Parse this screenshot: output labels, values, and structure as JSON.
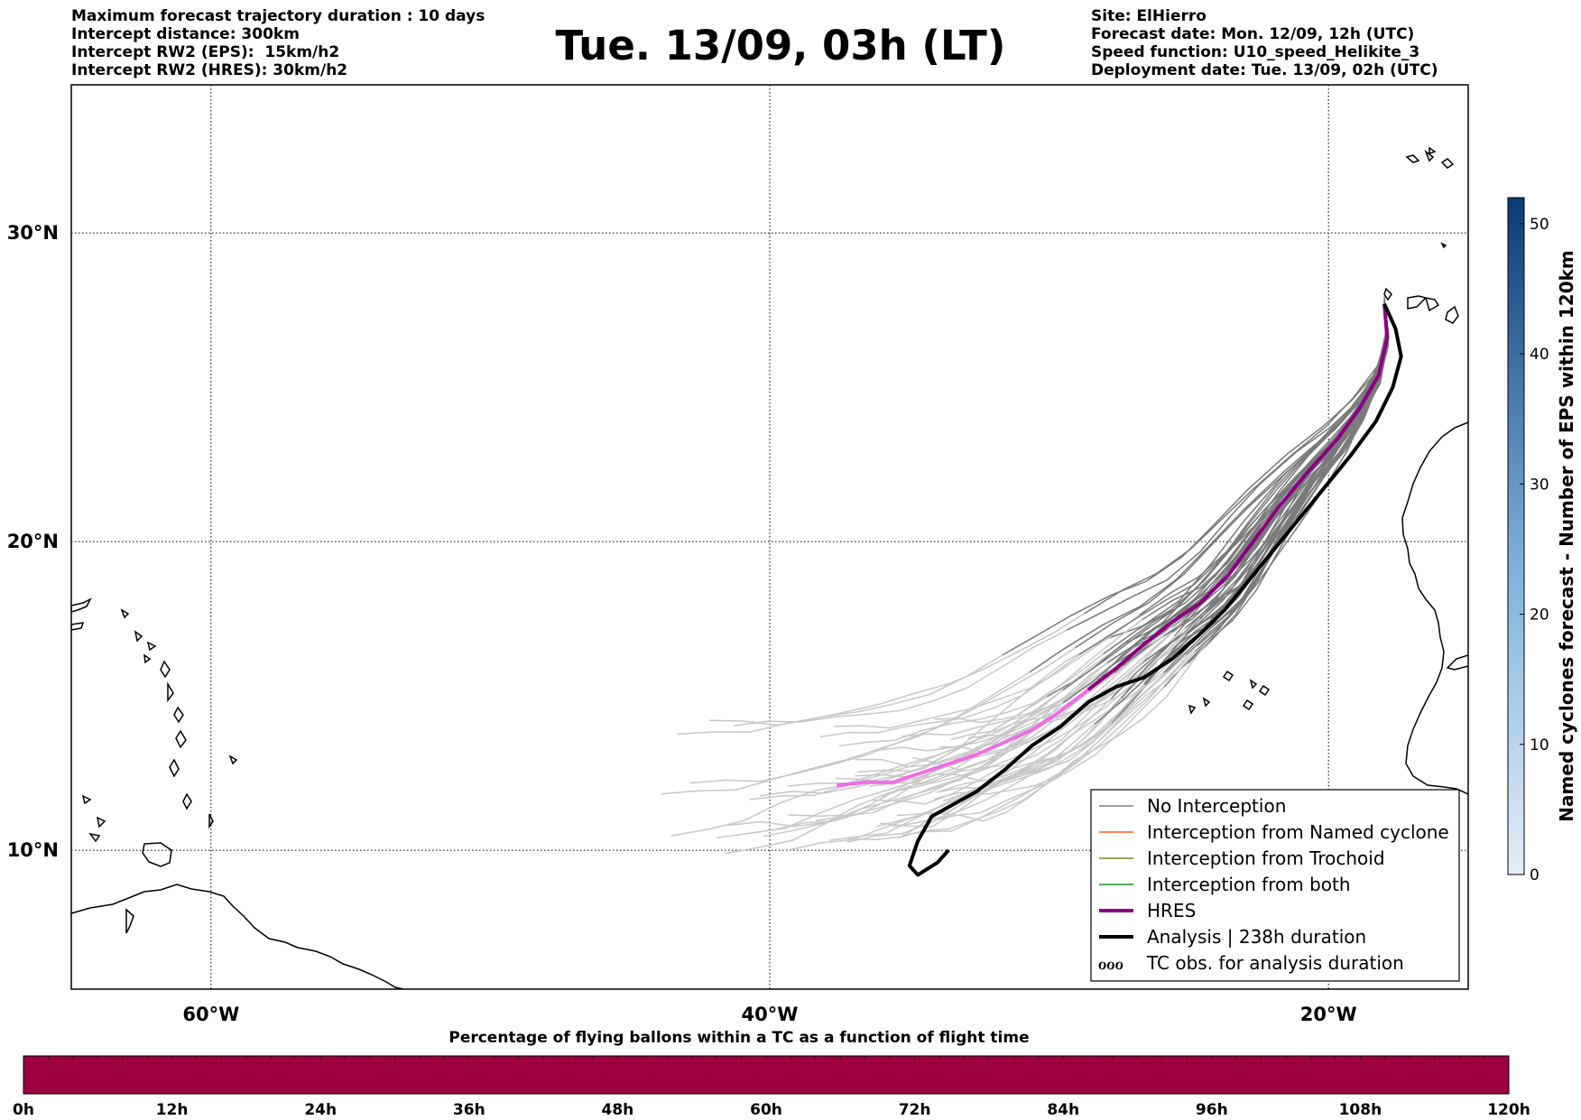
{
  "header": {
    "left_lines": [
      "Maximum forecast trajectory duration : 10 days",
      "Intercept distance: 300km",
      "Intercept RW2 (EPS):  15km/h2",
      "Intercept RW2 (HRES): 30km/h2"
    ],
    "right_lines": [
      "Site: ElHierro",
      "Forecast date: Mon. 12/09, 12h (UTC)",
      "Speed function: U10_speed_Helikite_3",
      "Deployment date: Tue. 13/09, 02h (UTC)"
    ],
    "title": "Tue. 13/09, 03h (LT)"
  },
  "map": {
    "lon_range": [
      -65,
      -15
    ],
    "lat_range": [
      5.5,
      34.8
    ],
    "lon_ticks": [
      {
        "lon": -60,
        "label": "60°W"
      },
      {
        "lon": -40,
        "label": "40°W"
      },
      {
        "lon": -20,
        "label": "20°W"
      }
    ],
    "lat_ticks": [
      {
        "lat": 30,
        "label": "30°N"
      },
      {
        "lat": 20,
        "label": "20°N"
      },
      {
        "lat": 10,
        "label": "10°N"
      }
    ],
    "grid": true,
    "site": {
      "lon": -18.0,
      "lat": 27.7
    },
    "hres_track": [
      [
        -18.0,
        27.7
      ],
      [
        -17.9,
        26.6
      ],
      [
        -18.2,
        25.4
      ],
      [
        -18.9,
        24.3
      ],
      [
        -19.7,
        23.3
      ],
      [
        -20.7,
        22.3
      ],
      [
        -21.8,
        21.1
      ],
      [
        -22.7,
        20.0
      ],
      [
        -23.6,
        18.9
      ],
      [
        -24.6,
        18.0
      ],
      [
        -25.6,
        17.4
      ],
      [
        -26.7,
        16.6
      ],
      [
        -27.6,
        15.9
      ],
      [
        -28.6,
        15.2
      ],
      [
        -29.6,
        14.5
      ],
      [
        -30.6,
        13.9
      ],
      [
        -31.6,
        13.5
      ],
      [
        -32.6,
        13.1
      ],
      [
        -33.6,
        12.8
      ],
      [
        -34.6,
        12.5
      ],
      [
        -35.6,
        12.2
      ],
      [
        -36.6,
        12.2
      ],
      [
        -37.6,
        12.1
      ]
    ],
    "hres_light_from_index": 13,
    "analysis_track": [
      [
        -18.0,
        27.7
      ],
      [
        -17.6,
        26.9
      ],
      [
        -17.4,
        26.0
      ],
      [
        -17.7,
        25.0
      ],
      [
        -18.3,
        23.9
      ],
      [
        -19.2,
        22.8
      ],
      [
        -20.1,
        21.8
      ],
      [
        -21.0,
        20.8
      ],
      [
        -21.9,
        19.8
      ],
      [
        -22.8,
        18.8
      ],
      [
        -23.7,
        17.8
      ],
      [
        -24.6,
        17.0
      ],
      [
        -25.6,
        16.2
      ],
      [
        -26.6,
        15.6
      ],
      [
        -27.6,
        15.3
      ],
      [
        -28.6,
        14.8
      ],
      [
        -29.6,
        14.0
      ],
      [
        -30.6,
        13.4
      ],
      [
        -31.6,
        12.6
      ],
      [
        -32.6,
        11.9
      ],
      [
        -33.6,
        11.4
      ],
      [
        -34.2,
        11.1
      ],
      [
        -34.7,
        10.3
      ],
      [
        -35.0,
        9.5
      ],
      [
        -34.7,
        9.2
      ],
      [
        -34.0,
        9.6
      ],
      [
        -33.6,
        10.0
      ]
    ],
    "legend": [
      {
        "label": "No Interception",
        "color": "#808080",
        "width": 1.5
      },
      {
        "label": "Interception from Named cyclone",
        "color": "#ff5a1e",
        "width": 1.5
      },
      {
        "label": "Interception from Trochoid",
        "color": "#7a8c1e",
        "width": 1.5
      },
      {
        "label": "Interception from both",
        "color": "#1e8c2e",
        "width": 1.5
      },
      {
        "label": "HRES",
        "color": "#8b0080",
        "width": 4
      },
      {
        "label": "Analysis | 238h duration",
        "color": "#000000",
        "width": 4
      },
      {
        "label": "TC obs. for analysis duration",
        "color": "#000000",
        "width": 0,
        "symbol": "ℴℴℴ"
      }
    ]
  },
  "colorbar": {
    "label": "Named cyclones forecast - Number of EPS within 120km",
    "min": 0,
    "max": 52,
    "ticks": [
      0,
      10,
      20,
      30,
      40,
      50
    ],
    "color_low": "#e4eef8",
    "color_high": "#0b3a78"
  },
  "timeline": {
    "title": "Percentage of flying ballons within a TC as a function of flight time",
    "color": "#9c0040",
    "tick_labels": [
      "0h",
      "12h",
      "24h",
      "36h",
      "48h",
      "60h",
      "72h",
      "84h",
      "96h",
      "108h",
      "120h"
    ]
  }
}
